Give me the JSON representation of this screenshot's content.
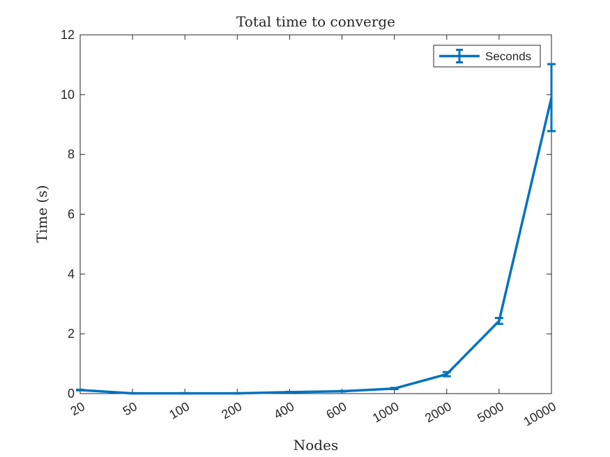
{
  "chart_data": {
    "type": "line",
    "title": "Total time to converge",
    "xlabel": "Nodes",
    "ylabel": "Time (s)",
    "categories": [
      "20",
      "50",
      "100",
      "200",
      "400",
      "600",
      "1000",
      "2000",
      "5000",
      "10000"
    ],
    "ylim": [
      0,
      12
    ],
    "yticks": [
      0,
      2,
      4,
      6,
      8,
      10,
      12
    ],
    "grid": false,
    "legend_position": "top-right",
    "series": [
      {
        "name": "Seconds",
        "color": "#0072bd",
        "values": [
          0.12,
          0.01,
          0.01,
          0.01,
          0.05,
          0.08,
          0.17,
          0.65,
          2.43,
          9.9
        ],
        "error": [
          0.01,
          0.005,
          0.005,
          0.005,
          0.01,
          0.01,
          0.02,
          0.07,
          0.1,
          1.12
        ]
      }
    ]
  }
}
